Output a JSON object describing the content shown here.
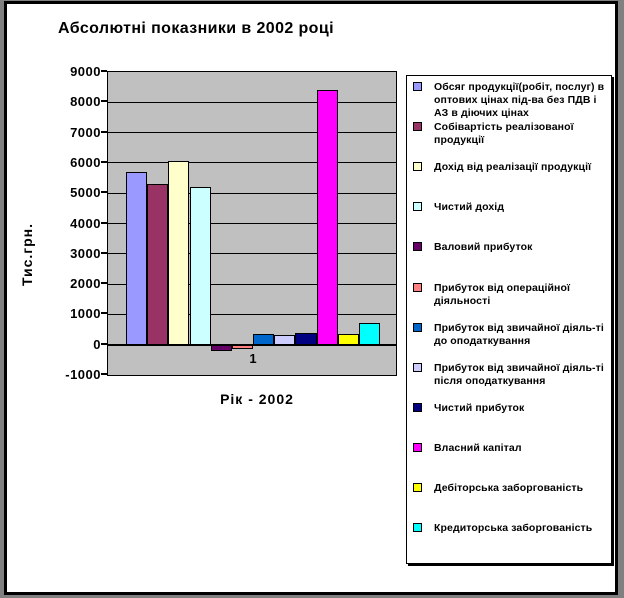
{
  "chart_data": {
    "type": "bar",
    "title": "Абсолютні показники в 2002 році",
    "xlabel": "Рік - 2002",
    "ylabel": "Тис.грн.",
    "categories": [
      "1"
    ],
    "ylim": [
      -1000,
      9000
    ],
    "ytick_step": 1000,
    "grid": true,
    "legend_position": "right",
    "plot_bg": "#c0c0c0",
    "outer_bg": "#808080",
    "series": [
      {
        "name": "Обсяг продукції(робіт, послуг) в оптових цінах під-ва  без ПДВ і АЗ в діючих цінах",
        "color": "#9999FF",
        "value": 5700
      },
      {
        "name": "Собівартість реалізованої продукції",
        "color": "#993366",
        "value": 5300
      },
      {
        "name": "Дохід від реалізації продукції",
        "color": "#FFFFCC",
        "value": 6050
      },
      {
        "name": "Чистий дохід",
        "color": "#CCFFFF",
        "value": 5200
      },
      {
        "name": "Валовий прибуток",
        "color": "#660066",
        "value": -200
      },
      {
        "name": "Прибуток від операційної діяльності",
        "color": "#FF8080",
        "value": -150
      },
      {
        "name": "Прибуток від звичайної діяль-ті до оподаткування",
        "color": "#0066CC",
        "value": 350
      },
      {
        "name": "Прибуток від звичайної діяль-ті після  оподаткування",
        "color": "#CCCCFF",
        "value": 320
      },
      {
        "name": "Чистий прибуток",
        "color": "#000080",
        "value": 370
      },
      {
        "name": "Власний капітал",
        "color": "#FF00FF",
        "value": 8400
      },
      {
        "name": "Дебіторська заборгованість",
        "color": "#FFFF00",
        "value": 350
      },
      {
        "name": "Кредиторська заборгованість",
        "color": "#00FFFF",
        "value": 700
      }
    ]
  }
}
